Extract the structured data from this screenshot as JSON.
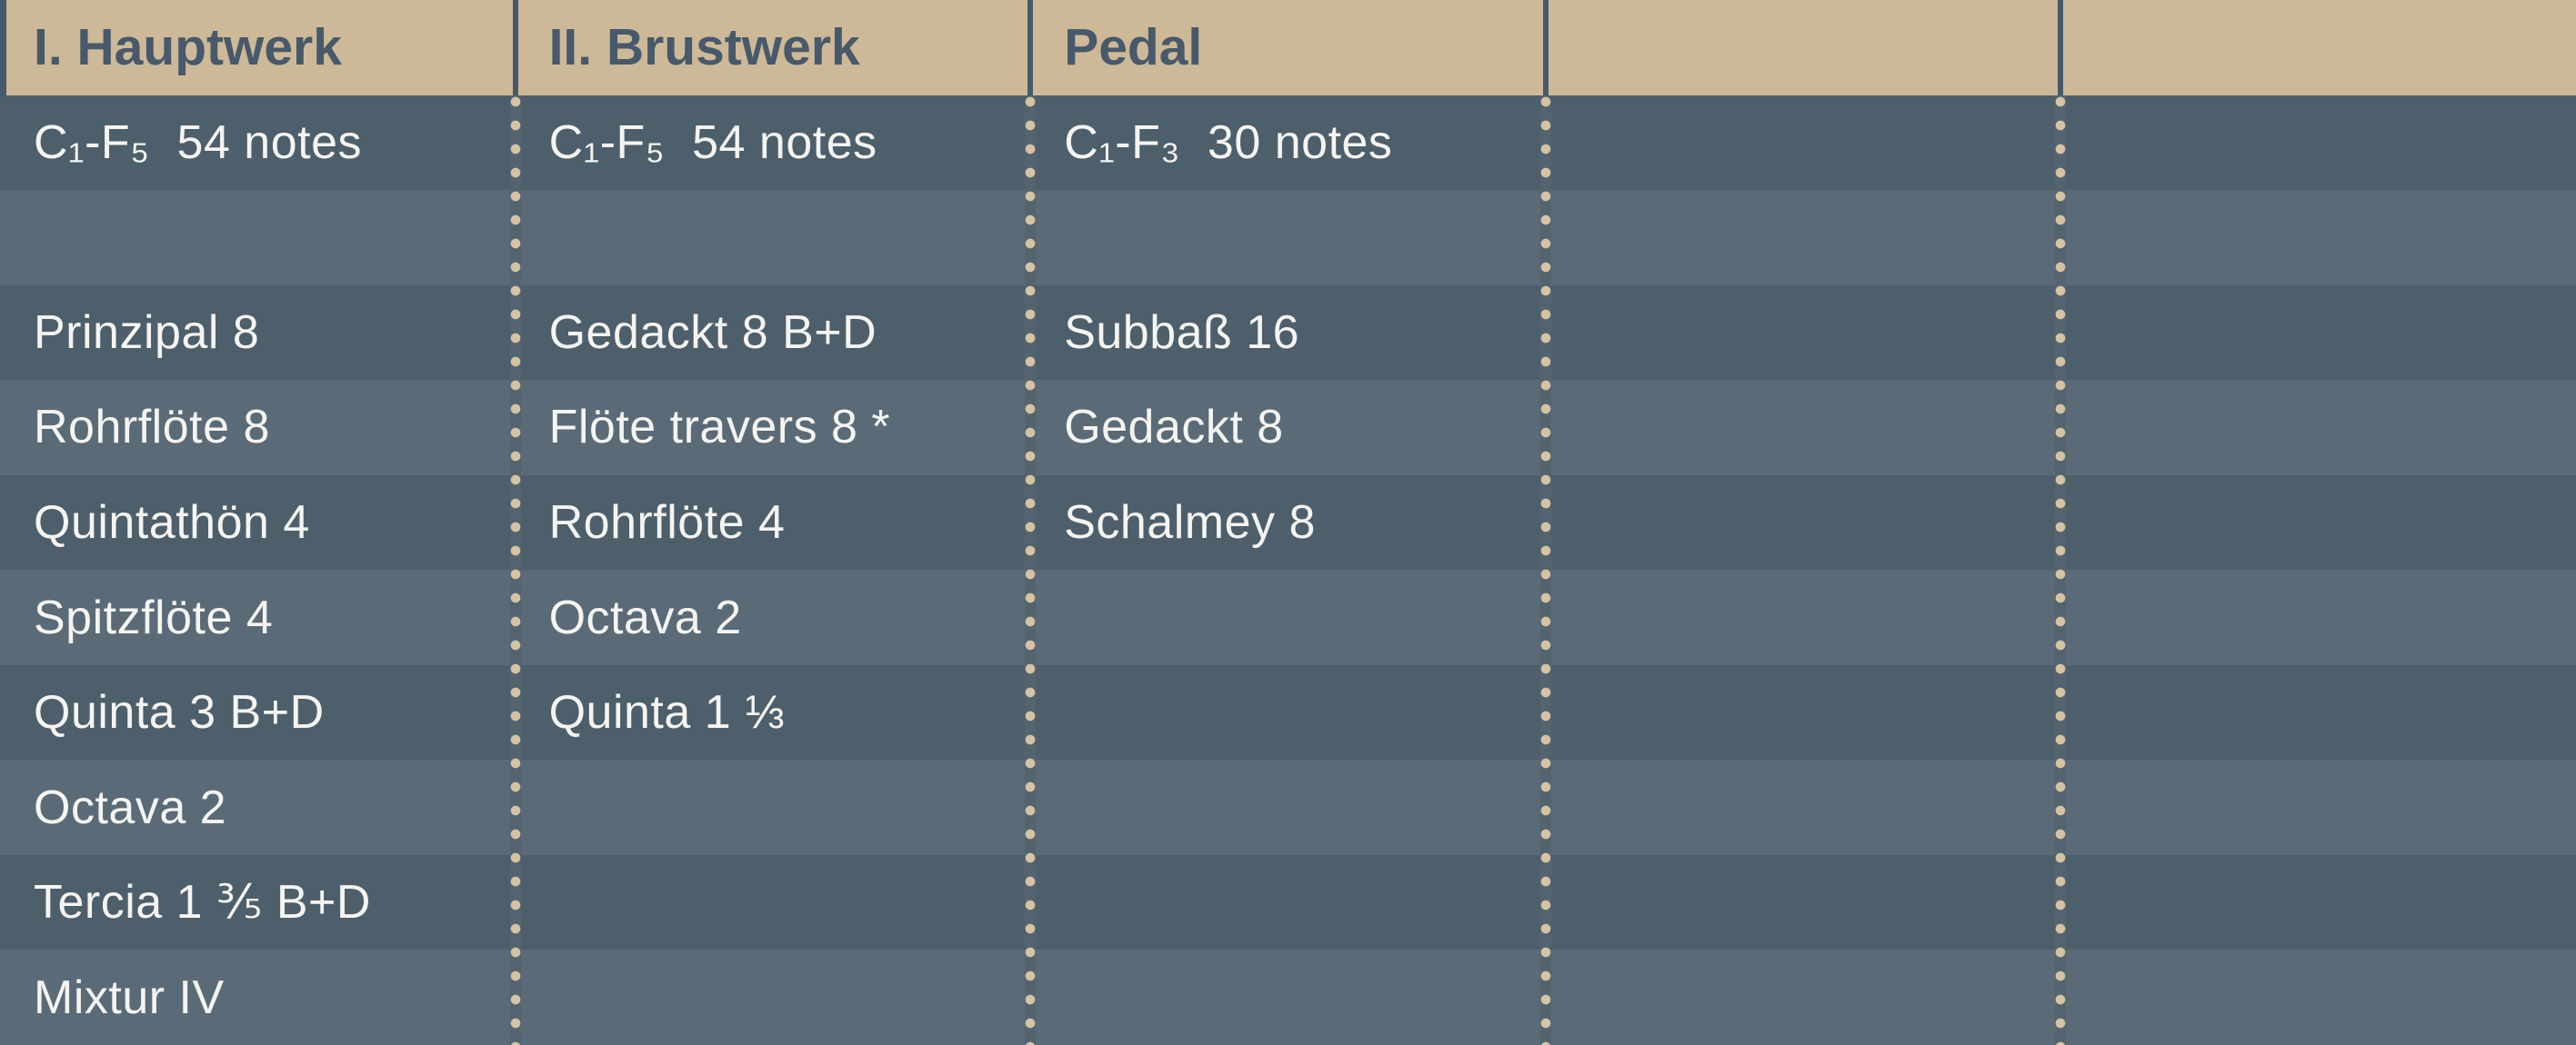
{
  "colors": {
    "header_bg": "#CDB997",
    "header_text": "#47596A",
    "row_dark": "#4D5F6B",
    "row_light": "#5A6B77",
    "cell_text": "#F5F4F0",
    "dot": "#D6C3A3",
    "separator_strip": "#53646F"
  },
  "table": {
    "headers": [
      "I. Hauptwerk",
      "II. Brustwerk",
      "Pedal",
      "",
      ""
    ],
    "compass_row": [
      "C₁-F₅  54 notes",
      "C₁-F₅  54 notes",
      "C₁-F₃  30 notes",
      "",
      ""
    ],
    "spacer_row": [
      "",
      "",
      "",
      "",
      ""
    ],
    "stop_rows": [
      [
        "Prinzipal 8",
        "Gedackt 8 B+D",
        "Subbaß 16",
        "",
        ""
      ],
      [
        "Rohrflöte 8",
        "Flöte travers 8 *",
        "Gedackt 8",
        "",
        ""
      ],
      [
        "Quintathön 4",
        "Rohrflöte 4",
        "Schalmey 8",
        "",
        ""
      ],
      [
        "Spitzflöte 4",
        "Octava 2",
        "",
        "",
        ""
      ],
      [
        "Quinta 3 B+D",
        "Quinta 1 ⅓",
        "",
        "",
        ""
      ],
      [
        "Octava 2",
        "",
        "",
        "",
        ""
      ],
      [
        "Tercia 1 ⅗ B+D",
        "",
        "",
        "",
        ""
      ],
      [
        "Mixtur IV",
        "",
        "",
        "",
        ""
      ]
    ],
    "column_slugs": [
      "hauptwerk",
      "brustwerk",
      "pedal",
      "empty-4",
      "empty-5"
    ],
    "separator_positions_pct": [
      20,
      40,
      60,
      80
    ]
  }
}
